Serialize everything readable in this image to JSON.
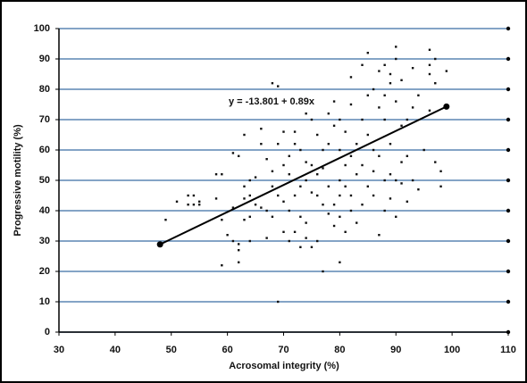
{
  "chart_data": {
    "type": "scatter",
    "x_label": "Acrosomal integrity (%)",
    "y_label": "Progressive motility (%)",
    "annotation": "y = -13.801 + 0.89x",
    "xlim": [
      30,
      110
    ],
    "ylim": [
      0,
      100
    ],
    "xticks": [
      30,
      40,
      50,
      60,
      70,
      80,
      90,
      100,
      110
    ],
    "yticks": [
      0,
      10,
      20,
      30,
      40,
      50,
      60,
      70,
      80,
      90,
      100
    ],
    "grid": true,
    "grid_color": "#5b86b3",
    "series": [
      {
        "color": "#111111",
        "x": [
          49,
          51,
          53,
          53,
          54,
          54,
          55,
          55,
          58,
          58,
          59,
          59,
          59,
          60,
          61,
          61,
          61,
          62,
          62,
          62,
          62,
          63,
          63,
          63,
          63,
          64,
          64,
          64,
          64,
          65,
          65,
          66,
          66,
          66,
          67,
          67,
          67,
          68,
          68,
          68,
          68,
          69,
          69,
          69,
          69,
          70,
          70,
          70,
          70,
          71,
          71,
          71,
          71,
          72,
          72,
          72,
          72,
          73,
          73,
          73,
          73,
          74,
          74,
          74,
          74,
          74,
          75,
          75,
          75,
          75,
          76,
          76,
          76,
          76,
          77,
          77,
          77,
          77,
          78,
          78,
          78,
          78,
          79,
          79,
          79,
          79,
          80,
          80,
          80,
          80,
          80,
          80,
          81,
          81,
          81,
          81,
          82,
          82,
          82,
          82,
          82,
          83,
          83,
          83,
          84,
          84,
          84,
          84,
          85,
          85,
          85,
          85,
          86,
          86,
          86,
          86,
          87,
          87,
          87,
          87,
          88,
          88,
          88,
          88,
          88,
          89,
          89,
          89,
          89,
          89,
          90,
          90,
          90,
          90,
          90,
          91,
          91,
          91,
          91,
          92,
          92,
          92,
          93,
          93,
          93,
          94,
          94,
          95,
          96,
          96,
          96,
          96,
          97,
          97,
          97,
          98,
          98,
          99
        ],
        "values": [
          37,
          43,
          45,
          42,
          45,
          42,
          43,
          42,
          52,
          44,
          52,
          22,
          37,
          32,
          30,
          41,
          59,
          58,
          29,
          27,
          23,
          65,
          48,
          44,
          37,
          38,
          30,
          45,
          50,
          51,
          42,
          67,
          62,
          41,
          31,
          57,
          40,
          82,
          48,
          38,
          53,
          81,
          62,
          45,
          10,
          66,
          55,
          33,
          43,
          58,
          52,
          40,
          30,
          66,
          45,
          33,
          62,
          60,
          48,
          38,
          28,
          72,
          56,
          50,
          36,
          31,
          70,
          55,
          46,
          28,
          65,
          45,
          52,
          30,
          60,
          20,
          42,
          54,
          72,
          48,
          39,
          62,
          68,
          76,
          42,
          35,
          70,
          60,
          50,
          45,
          23,
          38,
          66,
          55,
          48,
          33,
          75,
          84,
          58,
          45,
          40,
          62,
          52,
          36,
          88,
          70,
          55,
          42,
          92,
          78,
          65,
          48,
          80,
          60,
          53,
          45,
          86,
          74,
          58,
          32,
          88,
          78,
          70,
          50,
          40,
          85,
          82,
          62,
          52,
          44,
          94,
          90,
          76,
          50,
          38,
          83,
          68,
          56,
          49,
          70,
          58,
          43,
          87,
          74,
          50,
          78,
          47,
          60,
          93,
          88,
          85,
          73,
          90,
          82,
          56,
          53,
          48,
          86
        ]
      },
      {
        "type": "line",
        "color": "#000000",
        "x": [
          48,
          99
        ],
        "values": [
          28.9,
          74.3
        ]
      }
    ]
  }
}
